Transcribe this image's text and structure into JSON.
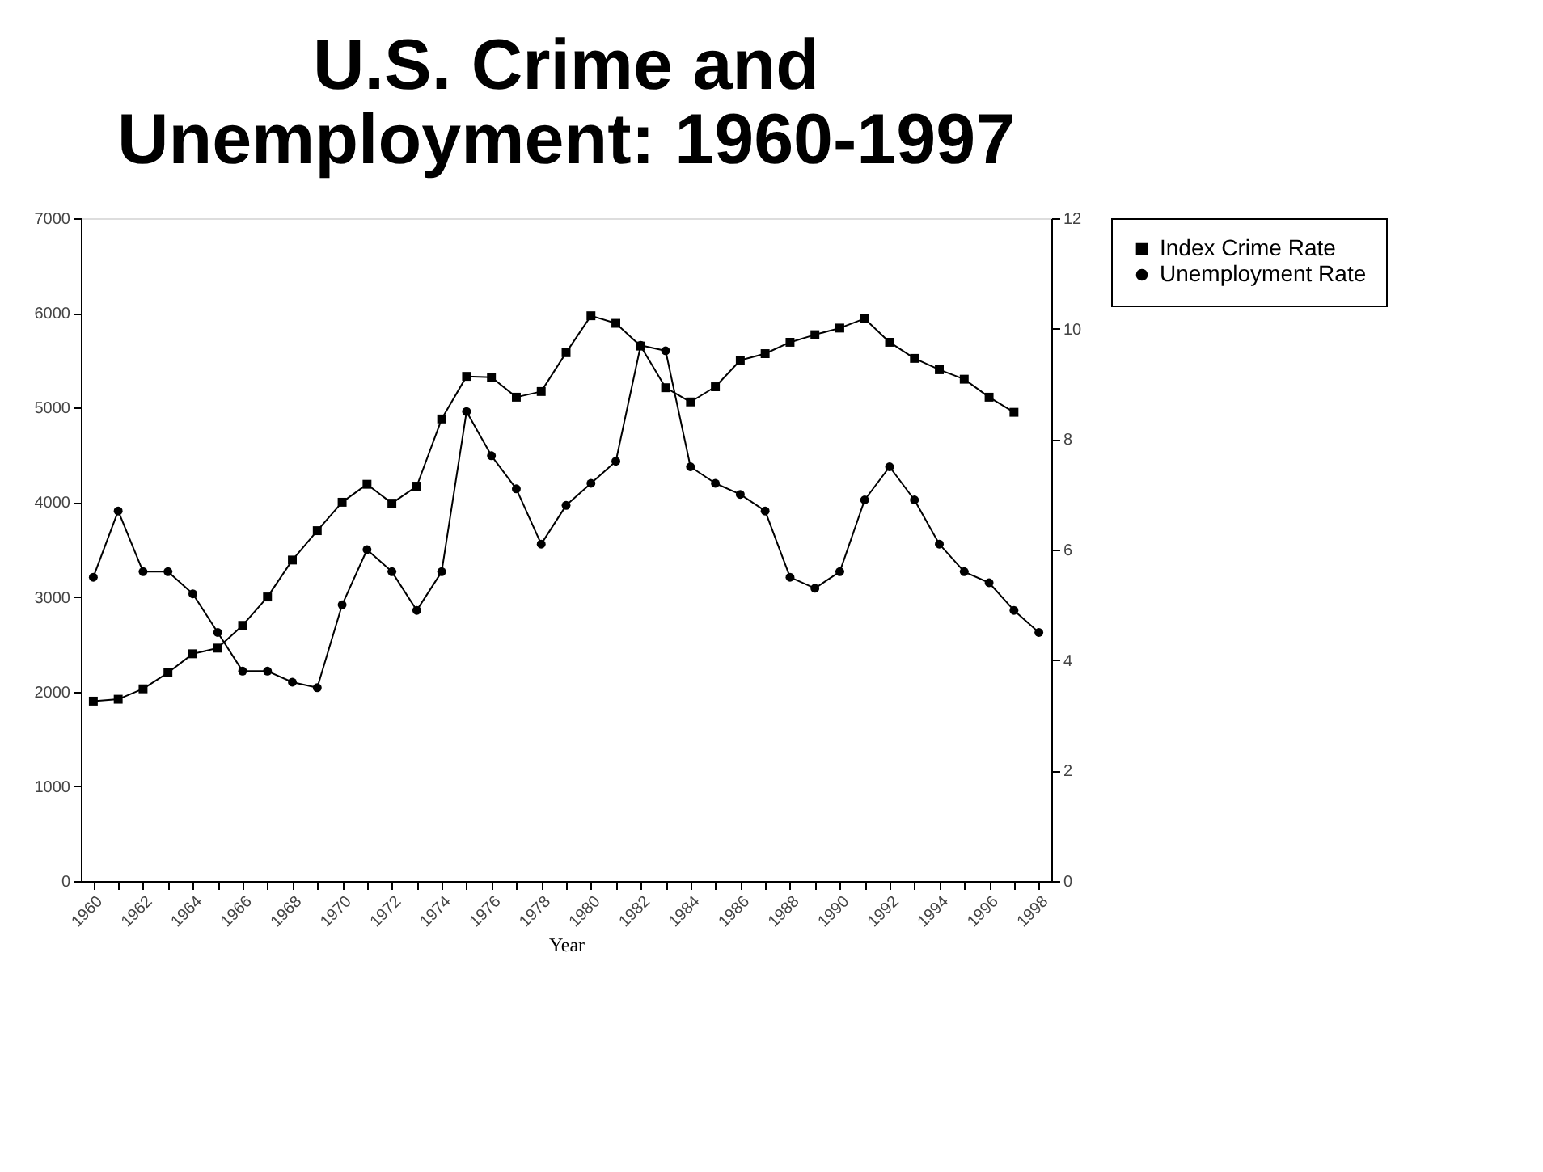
{
  "chart_data": {
    "type": "line",
    "title": "U.S. Crime and Unemployment:  1960-1997",
    "xlabel": "Year",
    "x": [
      1960,
      1961,
      1962,
      1963,
      1964,
      1965,
      1966,
      1967,
      1968,
      1969,
      1970,
      1971,
      1972,
      1973,
      1974,
      1975,
      1976,
      1977,
      1978,
      1979,
      1980,
      1981,
      1982,
      1983,
      1984,
      1985,
      1986,
      1987,
      1988,
      1989,
      1990,
      1991,
      1992,
      1993,
      1994,
      1995,
      1996,
      1997,
      1998
    ],
    "series": [
      {
        "name": "Index Crime Rate",
        "color": "#000000",
        "marker": "square",
        "values": [
          1900,
          1920,
          2030,
          2200,
          2400,
          2460,
          2700,
          3000,
          3390,
          3700,
          4000,
          4190,
          3990,
          4170,
          4880,
          5330,
          5320,
          5110,
          5170,
          5580,
          5970,
          5890,
          5650,
          5210,
          5060,
          5220,
          5500,
          5570,
          5690,
          5770,
          5840,
          5940,
          5690,
          5520,
          5400,
          5300,
          5110,
          4950,
          null
        ]
      },
      {
        "name": "Unemployment Rate",
        "color": "#000000",
        "marker": "circle",
        "axis": "y2",
        "values": [
          5.5,
          6.7,
          5.6,
          5.6,
          5.2,
          4.5,
          3.8,
          3.8,
          3.6,
          3.5,
          5.0,
          6.0,
          5.6,
          4.9,
          5.6,
          8.5,
          7.7,
          7.1,
          6.1,
          6.8,
          7.2,
          7.6,
          9.7,
          9.6,
          7.5,
          7.2,
          7.0,
          6.7,
          5.5,
          5.3,
          5.6,
          6.9,
          7.5,
          6.9,
          6.1,
          5.6,
          5.4,
          4.9,
          4.5
        ]
      }
    ],
    "xlim": [
      1959.5,
      1998.5
    ],
    "xticks": [
      1960,
      {
        "value": 1961,
        "label": null
      },
      1962,
      {
        "value": 1963,
        "label": null
      },
      1964,
      {
        "value": 1965,
        "label": null
      },
      1966,
      {
        "value": 1967,
        "label": null
      },
      1968,
      {
        "value": 1969,
        "label": null
      },
      1970,
      {
        "value": 1971,
        "label": null
      },
      1972,
      {
        "value": 1973,
        "label": null
      },
      1974,
      {
        "value": 1975,
        "label": null
      },
      1976,
      {
        "value": 1977,
        "label": null
      },
      1978,
      {
        "value": 1979,
        "label": null
      },
      1980,
      {
        "value": 1981,
        "label": null
      },
      1982,
      {
        "value": 1983,
        "label": null
      },
      1984,
      {
        "value": 1985,
        "label": null
      },
      1986,
      {
        "value": 1987,
        "label": null
      },
      1988,
      {
        "value": 1989,
        "label": null
      },
      1990,
      {
        "value": 1991,
        "label": null
      },
      1992,
      {
        "value": 1993,
        "label": null
      },
      1994,
      {
        "value": 1995,
        "label": null
      },
      1996,
      {
        "value": 1997,
        "label": null
      },
      1998
    ],
    "ylim": [
      0,
      7000
    ],
    "yticks": [
      0,
      1000,
      2000,
      3000,
      4000,
      5000,
      6000,
      7000
    ],
    "y2lim": [
      0,
      12
    ],
    "y2ticks": [
      0,
      2,
      4,
      6,
      8,
      10,
      12
    ],
    "grid": false,
    "legend": "right",
    "line_style": "solid"
  }
}
